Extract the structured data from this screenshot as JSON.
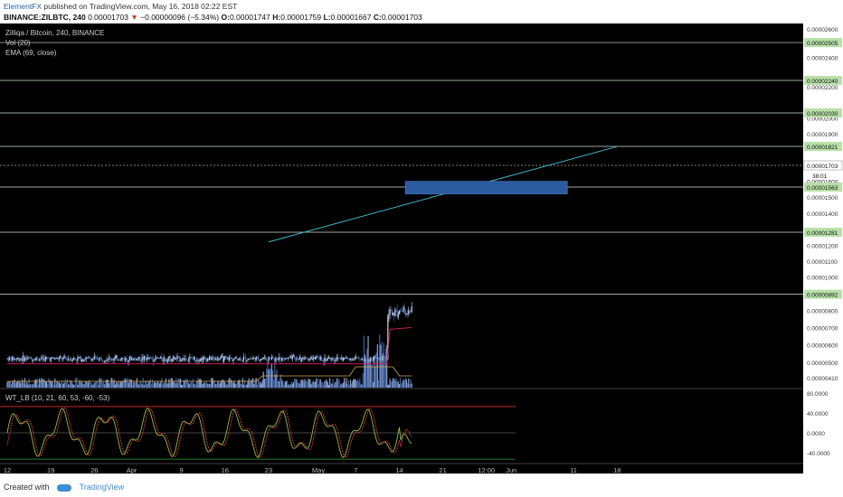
{
  "header": {
    "author": "ElementFX",
    "published_text": "published on TradingView.com, May 16, 2018 02:22 EST",
    "symbol": "BINANCE:ZILBTC, 240",
    "price": "0.00001703",
    "change": "−0.00000096 (−5.34%)",
    "o_label": "O:",
    "o": "0.00001747",
    "h_label": "H:",
    "h": "0.00001759",
    "l_label": "L:",
    "l": "0.00001667",
    "c_label": "C:",
    "c": "0.00001703"
  },
  "legend": {
    "pair": "Zilliqa / Bitcoin, 240, BINANCE",
    "vol": "Vol (20)",
    "ema": "EMA (69, close)",
    "osc": "WT_LB (10, 21, 60, 53, -60, -53)"
  },
  "footer": {
    "created_with": "Created with",
    "brand": "TradingView"
  },
  "colors": {
    "up": "#c8d4e6",
    "down": "#4d72b8",
    "ema": "#c2185b",
    "hline": "#5fa35f",
    "trend": "#3fb8c8",
    "zone": "#2c5a9e",
    "wt1": "#8bc34a",
    "wt2": "#e53935"
  },
  "chart_data": {
    "type": "candlestick",
    "price_axis_ticks": [
      "0.00002600",
      "0.00002400",
      "0.00002200",
      "0.00002000",
      "0.00001900",
      "0.00001700",
      "0.00001600",
      "0.00001500",
      "0.00001400",
      "0.00001200",
      "0.00001100",
      "0.00001000",
      "0.00000900",
      "0.00000800",
      "0.00000700",
      "0.00000600",
      "0.00000500",
      "0.00000410"
    ],
    "horizontal_levels": [
      "0.00002505",
      "0.00002240",
      "0.00002030",
      "0.00001821",
      "0.00001563",
      "0.00001281",
      "0.00000892"
    ],
    "last_price_label": "0.00001703",
    "countdown": "38:01",
    "osc_axis_ticks": [
      "80.0000",
      "40.0000",
      "0.0000",
      "-40.0000"
    ],
    "x_ticks": [
      "12",
      "19",
      "26",
      "Apr",
      "9",
      "16",
      "23",
      "May",
      "7",
      "14",
      "21",
      "12:00",
      "Jun",
      "11",
      "18"
    ],
    "approx_close_path": [
      [
        "12",
        5.2e-06
      ],
      [
        "19",
        5e-06
      ],
      [
        "26",
        5.6e-06
      ],
      [
        "Apr",
        6e-06
      ],
      [
        "9",
        6.3e-06
      ],
      [
        "16",
        8e-06
      ],
      [
        "23",
        1.1e-05
      ],
      [
        "25",
        9.5e-06
      ],
      [
        "May",
        1.2e-05
      ],
      [
        "3",
        1.18e-05
      ],
      [
        "7",
        1.45e-05
      ],
      [
        "9",
        1.75e-05
      ],
      [
        "10",
        2.45e-05
      ],
      [
        "12",
        2.05e-05
      ],
      [
        "13",
        2.2e-05
      ],
      [
        "14",
        1.95e-05
      ],
      [
        "16",
        1.7e-05
      ]
    ],
    "ema_approx": [
      [
        "12",
        4.9e-06
      ],
      [
        "Apr",
        5.7e-06
      ],
      [
        "16",
        7e-06
      ],
      [
        "23",
        8.5e-06
      ],
      [
        "May",
        1e-05
      ],
      [
        "7",
        1.25e-05
      ],
      [
        "10",
        1.5e-05
      ],
      [
        "14",
        1.68e-05
      ],
      [
        "16",
        1.7e-05
      ]
    ],
    "trendline": [
      [
        "23",
        1.22e-05
      ],
      [
        "18",
        1.82e-05
      ]
    ],
    "zone": [
      1.52e-05,
      1.6e-05
    ]
  }
}
